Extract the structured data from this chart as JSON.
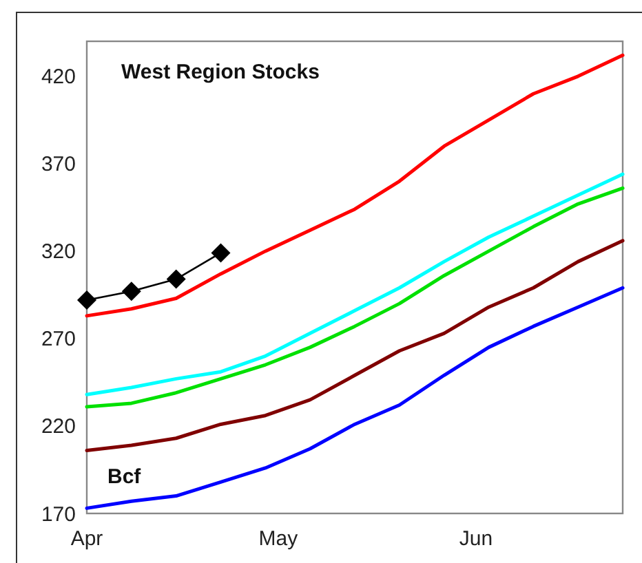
{
  "chart_data": {
    "type": "line",
    "title": "West Region Stocks",
    "ylabel": "Bcf",
    "x": [
      "--04-01",
      "--04-08",
      "--04-15",
      "--04-22",
      "--04-29",
      "--05-06",
      "--05-13",
      "--05-20",
      "--05-27",
      "--06-03",
      "--06-10",
      "--06-17",
      "--06-24"
    ],
    "xlim": [
      "--04-01",
      "--06-24"
    ],
    "xticks": [
      {
        "value": "--04-01",
        "label": "Apr"
      },
      {
        "value": "--05-01",
        "label": "May"
      },
      {
        "value": "--06-01",
        "label": "Jun"
      }
    ],
    "ylim": [
      170,
      440
    ],
    "yticks": [
      170,
      220,
      270,
      320,
      370,
      420
    ],
    "grid": false,
    "line_style": "solid",
    "series": [
      {
        "color": "#ff0000",
        "values": [
          283,
          287,
          293,
          307,
          320,
          332,
          344,
          360,
          380,
          395,
          410,
          420,
          432
        ]
      },
      {
        "color": "#00ffff",
        "values": [
          238,
          242,
          247,
          251,
          260,
          273,
          286,
          299,
          314,
          328,
          340,
          352,
          364
        ]
      },
      {
        "color": "#00e000",
        "values": [
          231,
          233,
          239,
          247,
          255,
          265,
          277,
          290,
          306,
          320,
          334,
          347,
          356
        ]
      },
      {
        "color": "#800000",
        "values": [
          206,
          209,
          213,
          221,
          226,
          235,
          249,
          263,
          273,
          288,
          299,
          314,
          326
        ]
      },
      {
        "color": "#0000ff",
        "values": [
          173,
          177,
          180,
          188,
          196,
          207,
          221,
          232,
          249,
          265,
          277,
          288,
          299
        ]
      },
      {
        "color": "#000000",
        "marker": "diamond",
        "values": [
          292,
          297,
          304,
          319,
          null,
          null,
          null,
          null,
          null,
          null,
          null,
          null,
          null
        ]
      }
    ]
  }
}
